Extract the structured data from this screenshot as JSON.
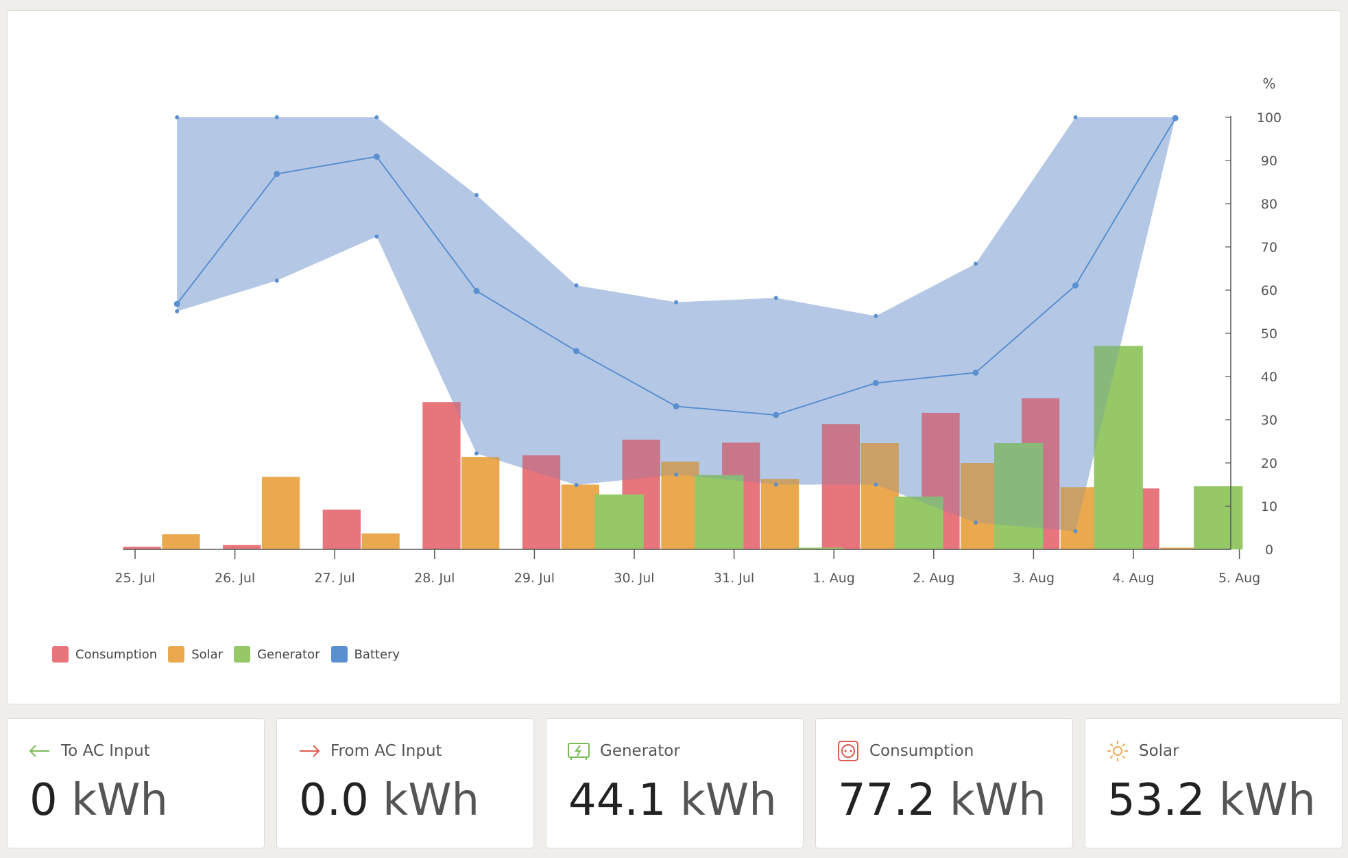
{
  "chart_data": {
    "type": "bar",
    "x_ticks": [
      "25. Jul",
      "26. Jul",
      "27. Jul",
      "28. Jul",
      "29. Jul",
      "30. Jul",
      "31. Jul",
      "1. Aug",
      "2. Aug",
      "3. Aug",
      "4. Aug",
      "5. Aug"
    ],
    "y_right_label": "%",
    "y_right_ticks": [
      0,
      10,
      20,
      30,
      40,
      50,
      60,
      70,
      80,
      90,
      100
    ],
    "ylim_right": [
      0,
      100
    ],
    "days": [
      "25. Jul",
      "26. Jul",
      "27. Jul",
      "28. Jul",
      "29. Jul",
      "30. Jul",
      "31. Jul",
      "1. Aug",
      "2. Aug",
      "3. Aug",
      "4. Aug"
    ],
    "series": [
      {
        "name": "Consumption",
        "color": "#e8747c",
        "values": [
          0.6,
          1.0,
          9.2,
          34.1,
          21.8,
          25.4,
          24.7,
          29.0,
          31.6,
          35.0,
          14.1
        ]
      },
      {
        "name": "Solar",
        "color": "#eaa94f",
        "values": [
          3.5,
          16.8,
          3.7,
          21.4,
          15.0,
          20.3,
          16.3,
          24.6,
          20.0,
          14.4,
          0.4
        ]
      },
      {
        "name": "Generator",
        "color": "#97c868",
        "values": [
          0,
          0,
          0,
          0,
          12.7,
          17.2,
          0.4,
          12.2,
          24.6,
          47.1,
          14.6
        ]
      }
    ],
    "battery": {
      "name": "Battery",
      "color": "#5a8fd0",
      "band_color": "#c8d9ee",
      "points": [
        {
          "date": "25. Jul",
          "avg": 56.8,
          "min": 55.1,
          "max": 100
        },
        {
          "date": "26. Jul",
          "avg": 86.9,
          "min": 62.2,
          "max": 100
        },
        {
          "date": "27. Jul",
          "avg": 90.9,
          "min": 72.4,
          "max": 100
        },
        {
          "date": "28. Jul",
          "avg": 59.8,
          "min": 22.2,
          "max": 82.0
        },
        {
          "date": "29. Jul",
          "avg": 45.9,
          "min": 14.9,
          "max": 61.1
        },
        {
          "date": "30. Jul",
          "avg": 33.1,
          "min": 17.3,
          "max": 57.2
        },
        {
          "date": "31. Jul",
          "avg": 31.1,
          "min": 15.0,
          "max": 58.2
        },
        {
          "date": "1. Aug",
          "avg": 38.5,
          "min": 15.0,
          "max": 54.0
        },
        {
          "date": "2. Aug",
          "avg": 40.9,
          "min": 6.2,
          "max": 66.1
        },
        {
          "date": "3. Aug",
          "avg": 61.1,
          "min": 4.2,
          "max": 100
        },
        {
          "date": "4. Aug",
          "avg": 99.8,
          "min": 99.8,
          "max": 100
        }
      ]
    }
  },
  "legend": [
    {
      "name": "Consumption",
      "color": "#e8747c"
    },
    {
      "name": "Solar",
      "color": "#eaa94f"
    },
    {
      "name": "Generator",
      "color": "#97c868"
    },
    {
      "name": "Battery",
      "color": "#5a8fd0"
    }
  ],
  "cards": [
    {
      "title": "To AC Input",
      "value": "0",
      "unit": "kWh",
      "icon": "arrow-left-icon",
      "icon_color": "#7ab956"
    },
    {
      "title": "From AC Input",
      "value": "0.0",
      "unit": "kWh",
      "icon": "arrow-right-icon",
      "icon_color": "#e05a4f"
    },
    {
      "title": "Generator",
      "value": "44.1",
      "unit": "kWh",
      "icon": "generator-icon",
      "icon_color": "#7ab956"
    },
    {
      "title": "Consumption",
      "value": "77.2",
      "unit": "kWh",
      "icon": "socket-icon",
      "icon_color": "#e05a4f"
    },
    {
      "title": "Solar",
      "value": "53.2",
      "unit": "kWh",
      "icon": "sun-icon",
      "icon_color": "#eaa94f"
    }
  ]
}
